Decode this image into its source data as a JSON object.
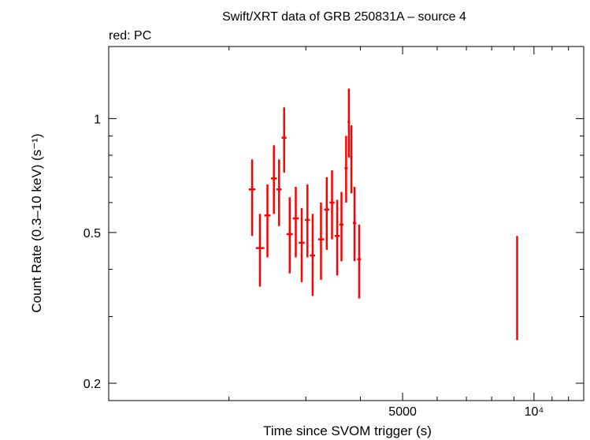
{
  "chart_data": {
    "type": "scatter",
    "title": "Swift/XRT data of GRB 250831A – source 4",
    "subtitle": "red: PC",
    "xlabel": "Time since SVOM trigger (s)",
    "ylabel": "Count Rate (0.3–10 keV) (s⁻¹)",
    "x_scale": "log",
    "y_scale": "log",
    "xlim": [
      1060,
      13000
    ],
    "ylim": [
      0.18,
      1.55
    ],
    "grid": false,
    "legend": "none",
    "x_ticks": [
      {
        "value": 5000,
        "label": "5000"
      },
      {
        "value": 10000,
        "label": "10⁴"
      }
    ],
    "y_ticks": [
      {
        "value": 0.2,
        "label": "0.2"
      },
      {
        "value": 0.5,
        "label": "0.5"
      },
      {
        "value": 1,
        "label": "1"
      }
    ],
    "series": [
      {
        "color": "#ff0000",
        "points": [
          {
            "x": 2260,
            "xlo": 2220,
            "xhi": 2300,
            "y": 0.65,
            "ylo": 0.49,
            "yhi": 0.78
          },
          {
            "x": 2355,
            "xlo": 2305,
            "xhi": 2410,
            "y": 0.455,
            "ylo": 0.36,
            "yhi": 0.56
          },
          {
            "x": 2450,
            "xlo": 2410,
            "xhi": 2490,
            "y": 0.555,
            "ylo": 0.43,
            "yhi": 0.67
          },
          {
            "x": 2535,
            "xlo": 2495,
            "xhi": 2575,
            "y": 0.695,
            "ylo": 0.56,
            "yhi": 0.85
          },
          {
            "x": 2605,
            "xlo": 2570,
            "xhi": 2640,
            "y": 0.65,
            "ylo": 0.52,
            "yhi": 0.78
          },
          {
            "x": 2675,
            "xlo": 2640,
            "xhi": 2710,
            "y": 0.89,
            "ylo": 0.72,
            "yhi": 1.07
          },
          {
            "x": 2755,
            "xlo": 2710,
            "xhi": 2800,
            "y": 0.495,
            "ylo": 0.39,
            "yhi": 0.62
          },
          {
            "x": 2845,
            "xlo": 2800,
            "xhi": 2890,
            "y": 0.545,
            "ylo": 0.43,
            "yhi": 0.66
          },
          {
            "x": 2935,
            "xlo": 2890,
            "xhi": 2980,
            "y": 0.47,
            "ylo": 0.37,
            "yhi": 0.58
          },
          {
            "x": 3025,
            "xlo": 2985,
            "xhi": 3065,
            "y": 0.54,
            "ylo": 0.43,
            "yhi": 0.67
          },
          {
            "x": 3110,
            "xlo": 3065,
            "xhi": 3150,
            "y": 0.435,
            "ylo": 0.34,
            "yhi": 0.56
          },
          {
            "x": 3250,
            "xlo": 3200,
            "xhi": 3305,
            "y": 0.48,
            "ylo": 0.375,
            "yhi": 0.6
          },
          {
            "x": 3350,
            "xlo": 3305,
            "xhi": 3395,
            "y": 0.575,
            "ylo": 0.45,
            "yhi": 0.7
          },
          {
            "x": 3445,
            "xlo": 3400,
            "xhi": 3490,
            "y": 0.6,
            "ylo": 0.48,
            "yhi": 0.73
          },
          {
            "x": 3540,
            "xlo": 3495,
            "xhi": 3585,
            "y": 0.49,
            "ylo": 0.385,
            "yhi": 0.61
          },
          {
            "x": 3620,
            "xlo": 3580,
            "xhi": 3660,
            "y": 0.525,
            "ylo": 0.42,
            "yhi": 0.64
          },
          {
            "x": 3710,
            "xlo": 3680,
            "xhi": 3740,
            "y": 0.74,
            "ylo": 0.6,
            "yhi": 0.9
          },
          {
            "x": 3765,
            "xlo": 3740,
            "xhi": 3790,
            "y": 0.98,
            "ylo": 0.79,
            "yhi": 1.2
          },
          {
            "x": 3815,
            "xlo": 3790,
            "xhi": 3840,
            "y": 0.79,
            "ylo": 0.635,
            "yhi": 0.96
          },
          {
            "x": 3880,
            "xlo": 3845,
            "xhi": 3915,
            "y": 0.53,
            "ylo": 0.42,
            "yhi": 0.66
          },
          {
            "x": 3975,
            "xlo": 3935,
            "xhi": 4015,
            "y": 0.425,
            "ylo": 0.335,
            "yhi": 0.525
          },
          {
            "x": 9150,
            "xlo": 9120,
            "xhi": 9180,
            "y": 0.36,
            "ylo": 0.26,
            "yhi": 0.49
          }
        ]
      }
    ]
  }
}
